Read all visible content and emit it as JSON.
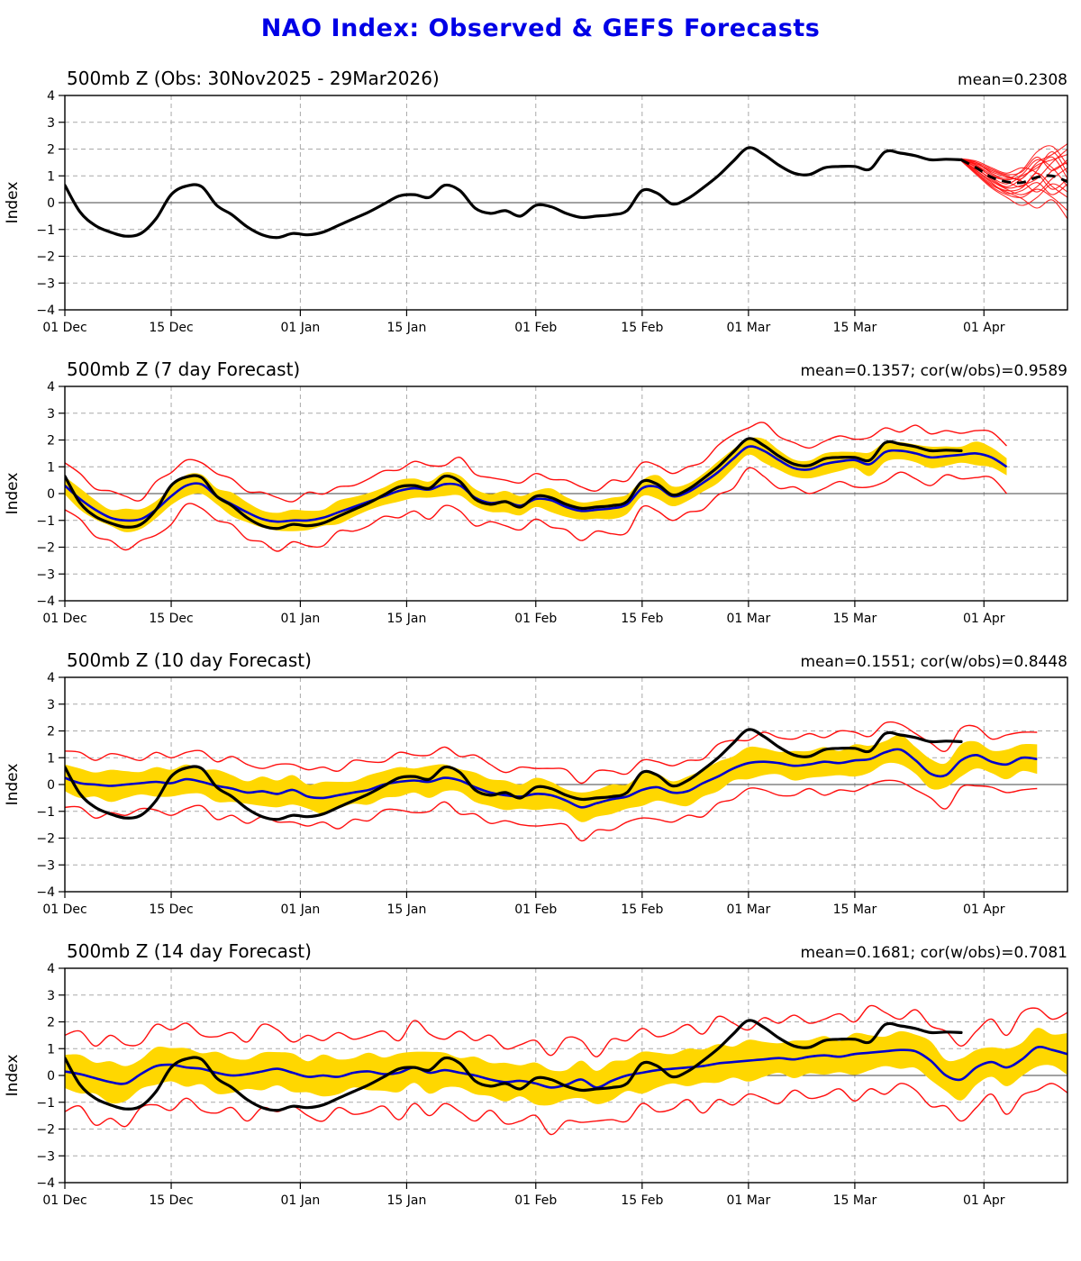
{
  "page_title": "NAO Index: Observed & GEFS Forecasts",
  "colors": {
    "title": "#0000e6",
    "observed_line": "#000000",
    "forecast_mean_line": "#0000cd",
    "spread_band": "#ffd700",
    "envelope_line": "#ff0f0f",
    "ensemble_member_line": "#ff0f0f",
    "ensemble_mean_dashed": "#000000"
  },
  "axis": {
    "ylabel": "Index",
    "ymin": -4,
    "ymax": 4,
    "yticks": [
      -4,
      -3,
      -2,
      -1,
      0,
      1,
      2,
      3,
      4
    ],
    "xmin": 0,
    "xmax": 132,
    "xticks": [
      {
        "day": 0,
        "label": "01 Dec"
      },
      {
        "day": 14,
        "label": "15 Dec"
      },
      {
        "day": 31,
        "label": "01 Jan"
      },
      {
        "day": 45,
        "label": "15 Jan"
      },
      {
        "day": 62,
        "label": "01 Feb"
      },
      {
        "day": 76,
        "label": "15 Feb"
      },
      {
        "day": 90,
        "label": "01 Mar"
      },
      {
        "day": 104,
        "label": "15 Mar"
      },
      {
        "day": 121,
        "label": "01 Apr"
      }
    ]
  },
  "chart_data": [
    {
      "type": "line",
      "title": "500mb Z (Obs: 30Nov2025 - 29Mar2026)",
      "stats": "mean=0.2308",
      "day_start": 0,
      "day_step": 2,
      "obs": [
        0.65,
        -0.35,
        -0.85,
        -1.1,
        -1.25,
        -1.15,
        -0.6,
        0.3,
        0.62,
        0.6,
        -0.1,
        -0.45,
        -0.9,
        -1.2,
        -1.3,
        -1.15,
        -1.2,
        -1.1,
        -0.85,
        -0.6,
        -0.35,
        -0.05,
        0.25,
        0.3,
        0.2,
        0.65,
        0.45,
        -0.2,
        -0.4,
        -0.3,
        -0.5,
        -0.1,
        -0.15,
        -0.4,
        -0.55,
        -0.5,
        -0.45,
        -0.3,
        0.45,
        0.35,
        -0.05,
        0.15,
        0.55,
        1.0,
        1.55,
        2.05,
        1.8,
        1.4,
        1.1,
        1.05,
        1.3,
        1.35,
        1.35,
        1.25,
        1.9,
        1.85,
        1.75,
        1.6,
        1.62,
        1.6
      ],
      "ensemble": {
        "days": [
          118,
          120,
          122,
          124,
          126,
          128,
          130,
          132
        ],
        "mean": [
          1.6,
          1.3,
          0.95,
          0.78,
          0.75,
          0.95,
          1.0,
          0.78
        ],
        "members": [
          [
            1.62,
            1.45,
            1.2,
            1.0,
            0.9,
            1.5,
            1.8,
            2.2
          ],
          [
            1.58,
            1.2,
            0.8,
            0.5,
            0.3,
            0.6,
            1.2,
            1.5
          ],
          [
            1.63,
            1.5,
            1.1,
            0.9,
            1.2,
            1.9,
            2.1,
            1.4
          ],
          [
            1.57,
            1.1,
            0.6,
            0.3,
            0.2,
            0.5,
            0.2,
            -0.3
          ],
          [
            1.61,
            1.4,
            1.05,
            0.8,
            0.6,
            1.1,
            0.6,
            0.2
          ],
          [
            1.59,
            1.25,
            0.9,
            0.6,
            0.9,
            1.4,
            1.6,
            1.8
          ],
          [
            1.64,
            1.55,
            1.3,
            1.1,
            1.3,
            1.1,
            0.5,
            0.9
          ],
          [
            1.56,
            1.05,
            0.55,
            0.2,
            -0.1,
            0.2,
            0.7,
            0.4
          ],
          [
            1.6,
            1.35,
            1.0,
            0.85,
            1.05,
            1.6,
            1.3,
            0.6
          ],
          [
            1.62,
            1.3,
            0.85,
            0.55,
            0.65,
            0.9,
            1.5,
            2.0
          ],
          [
            1.58,
            1.15,
            0.7,
            0.45,
            0.55,
            1.2,
            1.9,
            1.1
          ],
          [
            1.61,
            1.45,
            1.15,
            0.95,
            0.8,
            0.4,
            0.9,
            1.3
          ],
          [
            1.59,
            1.2,
            0.75,
            0.35,
            0.45,
            0.75,
            0.3,
            0.7
          ],
          [
            1.63,
            1.4,
            0.95,
            0.7,
            1.0,
            1.3,
            1.7,
            0.9
          ],
          [
            1.57,
            1.1,
            0.65,
            0.4,
            0.15,
            -0.2,
            0.1,
            -0.6
          ],
          [
            1.6,
            1.5,
            1.25,
            1.05,
            1.15,
            1.7,
            1.2,
            1.6
          ]
        ]
      }
    },
    {
      "type": "line",
      "title": "500mb Z (7 day Forecast)",
      "stats": "mean=0.1357; cor(w/obs)=0.9589",
      "day_start": 0,
      "day_step": 2,
      "mean": [
        0.3,
        -0.2,
        -0.6,
        -0.9,
        -1.0,
        -0.95,
        -0.6,
        -0.1,
        0.3,
        0.35,
        -0.1,
        -0.4,
        -0.7,
        -0.95,
        -1.05,
        -1.0,
        -1.0,
        -0.9,
        -0.7,
        -0.5,
        -0.3,
        -0.1,
        0.1,
        0.2,
        0.15,
        0.35,
        0.3,
        -0.15,
        -0.35,
        -0.3,
        -0.45,
        -0.2,
        -0.25,
        -0.5,
        -0.65,
        -0.6,
        -0.55,
        -0.4,
        0.2,
        0.25,
        -0.1,
        0.05,
        0.4,
        0.8,
        1.3,
        1.75,
        1.6,
        1.25,
        0.95,
        0.9,
        1.1,
        1.2,
        1.25,
        1.1,
        1.55,
        1.6,
        1.5,
        1.35,
        1.4,
        1.45,
        1.5,
        1.35,
        1.0
      ],
      "band_halfwidth_cycle": [
        0.33,
        0.4,
        0.36,
        0.3,
        0.44,
        0.37,
        0.32
      ],
      "env_upper_halfwidth_cycle": [
        0.85,
        0.95,
        0.78,
        1.0,
        0.9,
        0.7,
        1.05,
        0.88,
        0.95,
        0.8
      ],
      "env_lower_halfwidth_cycle": [
        0.9,
        0.75,
        1.0,
        0.85,
        1.1,
        0.8,
        0.95,
        1.05,
        0.7,
        0.9
      ]
    },
    {
      "type": "line",
      "title": "500mb Z (10 day Forecast)",
      "stats": "mean=0.1551; cor(w/obs)=0.8448",
      "day_start": 0,
      "day_step": 2,
      "mean": [
        0.25,
        0.05,
        0.0,
        -0.05,
        0.0,
        0.05,
        0.1,
        0.05,
        0.2,
        0.1,
        -0.05,
        -0.15,
        -0.3,
        -0.25,
        -0.35,
        -0.2,
        -0.45,
        -0.5,
        -0.4,
        -0.3,
        -0.2,
        0.0,
        0.1,
        0.15,
        0.1,
        0.25,
        0.15,
        -0.1,
        -0.3,
        -0.4,
        -0.45,
        -0.35,
        -0.4,
        -0.6,
        -0.85,
        -0.7,
        -0.55,
        -0.45,
        -0.2,
        -0.1,
        -0.3,
        -0.25,
        0.05,
        0.3,
        0.6,
        0.8,
        0.85,
        0.8,
        0.7,
        0.75,
        0.85,
        0.8,
        0.9,
        0.95,
        1.2,
        1.3,
        0.9,
        0.4,
        0.35,
        0.9,
        1.1,
        0.85,
        0.75,
        1.0,
        0.95
      ],
      "band_halfwidth_cycle": [
        0.5,
        0.55,
        0.45,
        0.6,
        0.5,
        0.42,
        0.55
      ],
      "env_upper_halfwidth_cycle": [
        1.0,
        1.15,
        0.9,
        1.2,
        1.05,
        0.85,
        1.1,
        0.95
      ],
      "env_lower_halfwidth_cycle": [
        1.1,
        0.9,
        1.25,
        1.0,
        1.15,
        0.95,
        1.05,
        1.2
      ]
    },
    {
      "type": "line",
      "title": "500mb Z (14 day Forecast)",
      "stats": "mean=0.1681; cor(w/obs)=0.7081",
      "day_start": 0,
      "day_step": 2,
      "mean": [
        0.15,
        0.05,
        -0.1,
        -0.25,
        -0.3,
        0.05,
        0.35,
        0.4,
        0.3,
        0.25,
        0.1,
        0.0,
        0.05,
        0.15,
        0.25,
        0.1,
        -0.05,
        0.0,
        -0.05,
        0.1,
        0.15,
        0.05,
        0.1,
        0.3,
        0.1,
        0.2,
        0.1,
        0.0,
        -0.15,
        -0.25,
        -0.2,
        -0.3,
        -0.45,
        -0.35,
        -0.15,
        -0.45,
        -0.2,
        0.0,
        0.1,
        0.2,
        0.25,
        0.3,
        0.35,
        0.45,
        0.5,
        0.55,
        0.6,
        0.65,
        0.6,
        0.7,
        0.75,
        0.7,
        0.8,
        0.85,
        0.9,
        0.95,
        0.9,
        0.55,
        0.0,
        -0.15,
        0.3,
        0.5,
        0.3,
        0.6,
        1.05,
        0.95,
        0.8
      ],
      "band_halfwidth_cycle": [
        0.62,
        0.72,
        0.58,
        0.78,
        0.65,
        0.55,
        0.7
      ],
      "env_upper_halfwidth_cycle": [
        1.35,
        1.6,
        1.2,
        1.75,
        1.45,
        1.15,
        1.55,
        1.3,
        1.65,
        1.25
      ],
      "env_lower_halfwidth_cycle": [
        1.5,
        1.2,
        1.75,
        1.35,
        1.6,
        1.25,
        1.45,
        1.7,
        1.15,
        1.55
      ]
    }
  ]
}
